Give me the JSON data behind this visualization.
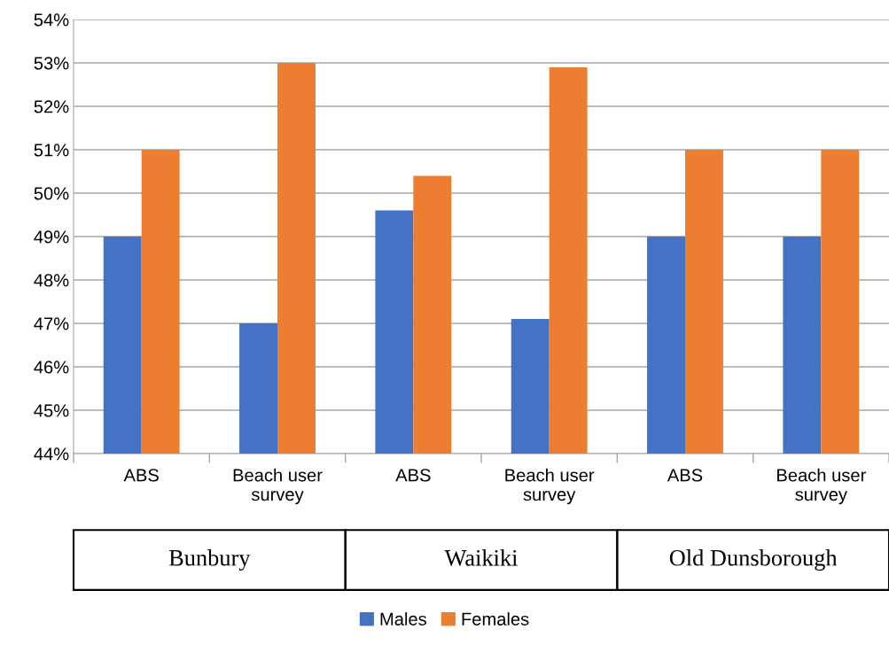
{
  "chart_data": {
    "type": "bar",
    "categories": [
      "ABS",
      "Beach user\nsurvey",
      "ABS",
      "Beach user\nsurvey",
      "ABS",
      "Beach user\nsurvey"
    ],
    "series": [
      {
        "name": "Males",
        "color": "#4472c4",
        "values": [
          49,
          47,
          49.6,
          47.1,
          49,
          49
        ]
      },
      {
        "name": "Females",
        "color": "#ed7d31",
        "values": [
          51,
          53,
          50.4,
          52.9,
          51,
          51
        ]
      }
    ],
    "ylim": [
      44,
      54
    ],
    "yticks": [
      {
        "value": 44,
        "label": "44%"
      },
      {
        "value": 45,
        "label": "45%"
      },
      {
        "value": 46,
        "label": "46%"
      },
      {
        "value": 47,
        "label": "47%"
      },
      {
        "value": 48,
        "label": "48%"
      },
      {
        "value": 49,
        "label": "49%"
      },
      {
        "value": 50,
        "label": "50%"
      },
      {
        "value": 51,
        "label": "51%"
      },
      {
        "value": 52,
        "label": "52%"
      },
      {
        "value": 53,
        "label": "53%"
      },
      {
        "value": 54,
        "label": "54%"
      }
    ],
    "grid": "y",
    "legend": "bottom",
    "annotations": [
      "Bunbury",
      "Waikiki",
      "Old Dunsborough"
    ]
  }
}
